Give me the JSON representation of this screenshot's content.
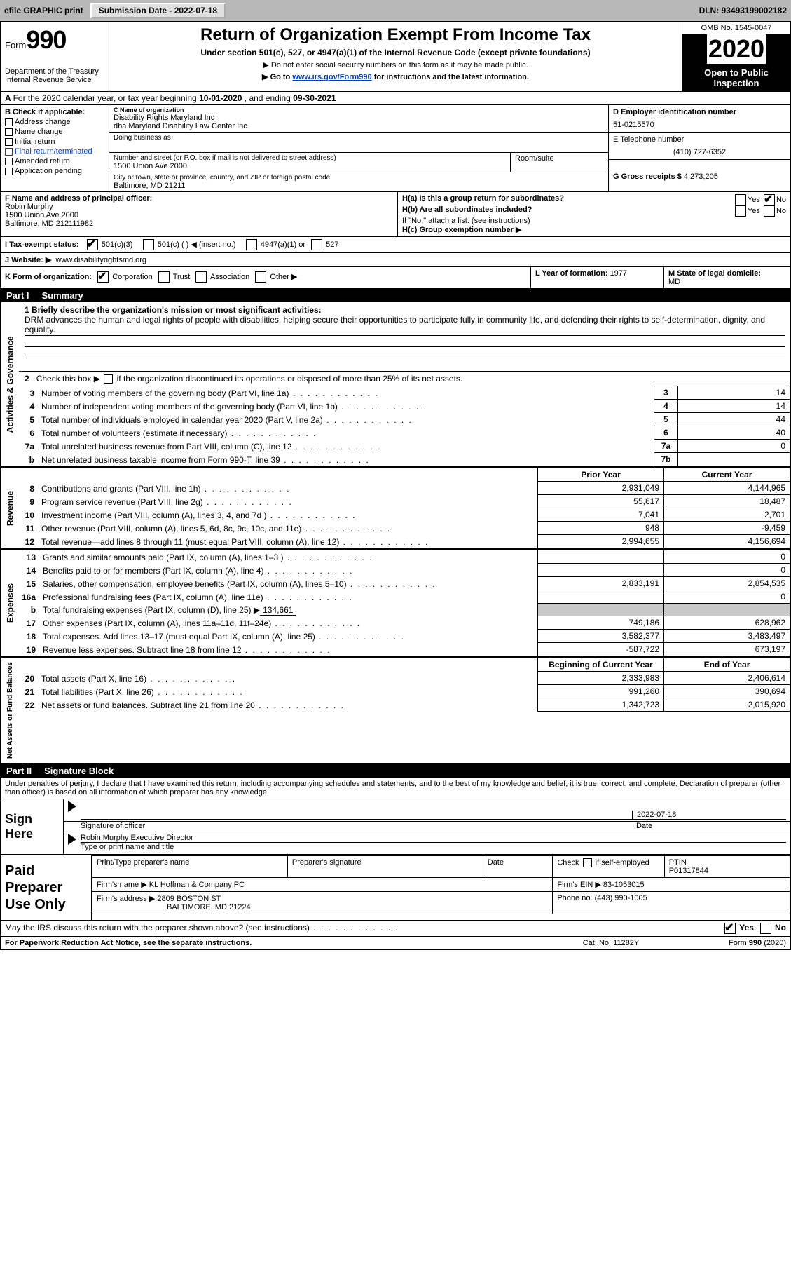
{
  "topbar": {
    "efile": "efile GRAPHIC print",
    "submission_label": "Submission Date - 2022-07-18",
    "dln_label": "DLN: 93493199002182"
  },
  "header": {
    "form_label": "Form",
    "form_num": "990",
    "dept": "Department of the Treasury",
    "irs": "Internal Revenue Service",
    "title": "Return of Organization Exempt From Income Tax",
    "sub": "Under section 501(c), 527, or 4947(a)(1) of the Internal Revenue Code (except private foundations)",
    "sub2a": "▶ Do not enter social security numbers on this form as it may be made public.",
    "sub2b_pre": "▶ Go to ",
    "sub2b_link": "www.irs.gov/Form990",
    "sub2b_post": " for instructions and the latest information.",
    "omb": "OMB No. 1545-0047",
    "year": "2020",
    "inspection": "Open to Public Inspection"
  },
  "rowA": {
    "text_pre": "For the 2020 calendar year, or tax year beginning ",
    "beg": "10-01-2020",
    "mid": "   , and ending ",
    "end": "09-30-2021"
  },
  "colB": {
    "hdr": "B Check if applicable:",
    "items": [
      "Address change",
      "Name change",
      "Initial return",
      "Final return/terminated",
      "Amended return",
      "Application pending"
    ]
  },
  "colC": {
    "name_lbl": "C Name of organization",
    "name1": "Disability Rights Maryland Inc",
    "name2": "dba Maryland Disability Law Center Inc",
    "dba_lbl": "Doing business as",
    "addr_lbl": "Number and street (or P.O. box if mail is not delivered to street address)",
    "room_lbl": "Room/suite",
    "addr": "1500 Union Ave 2000",
    "city_lbl": "City or town, state or province, country, and ZIP or foreign postal code",
    "city": "Baltimore, MD  21211"
  },
  "colD": {
    "d_lbl": "D Employer identification number",
    "ein": "51-0215570",
    "e_lbl": "E Telephone number",
    "phone": "(410) 727-6352",
    "g_lbl": "G Gross receipts $ ",
    "g_val": "4,273,205"
  },
  "fgh": {
    "f_lbl": "F Name and address of principal officer:",
    "f_name": "Robin Murphy",
    "f_addr1": "1500 Union Ave 2000",
    "f_addr2": "Baltimore, MD  212111982",
    "ha_lbl": "H(a)  Is this a group return for subordinates?",
    "hb_lbl": "H(b)  Are all subordinates included?",
    "h_note": "If \"No,\" attach a list. (see instructions)",
    "hc_lbl": "H(c)  Group exemption number ▶"
  },
  "rowI": {
    "lbl": "I    Tax-exempt status:",
    "o1": "501(c)(3)",
    "o2": "501(c) (   ) ◀ (insert no.)",
    "o3": "4947(a)(1) or",
    "o4": "527"
  },
  "rowJ": {
    "lbl": "J    Website: ▶",
    "val": "www.disabilityrightsmd.org"
  },
  "rowK": {
    "lbl": "K Form of organization:",
    "o1": "Corporation",
    "o2": "Trust",
    "o3": "Association",
    "o4": "Other ▶"
  },
  "rowL": {
    "lbl": "L Year of formation: ",
    "val": "1977"
  },
  "rowM": {
    "lbl": "M State of legal domicile: ",
    "val": "MD"
  },
  "part1": {
    "pn": "Part I",
    "title": "Summary"
  },
  "gov": {
    "q1_lbl": "1  Briefly describe the organization's mission or most significant activities:",
    "q1_text": "DRM advances the human and legal rights of people with disabilities, helping secure their opportunities to participate fully in community life, and defending their rights to self-determination, dignity, and equality.",
    "q2": "2   Check this box ▶        if the organization discontinued its operations or disposed of more than 25% of its net assets.",
    "rows": [
      {
        "n": "3",
        "label": "Number of voting members of the governing body (Part VI, line 1a)",
        "box": "3",
        "val": "14"
      },
      {
        "n": "4",
        "label": "Number of independent voting members of the governing body (Part VI, line 1b)",
        "box": "4",
        "val": "14"
      },
      {
        "n": "5",
        "label": "Total number of individuals employed in calendar year 2020 (Part V, line 2a)",
        "box": "5",
        "val": "44"
      },
      {
        "n": "6",
        "label": "Total number of volunteers (estimate if necessary)",
        "box": "6",
        "val": "40"
      },
      {
        "n": "7a",
        "label": "Total unrelated business revenue from Part VIII, column (C), line 12",
        "box": "7a",
        "val": "0"
      },
      {
        "n": "b",
        "label": "Net unrelated business taxable income from Form 990-T, line 39",
        "box": "7b",
        "val": ""
      }
    ]
  },
  "rev": {
    "hdr_prior": "Prior Year",
    "hdr_curr": "Current Year",
    "rows": [
      {
        "n": "8",
        "label": "Contributions and grants (Part VIII, line 1h)",
        "p": "2,931,049",
        "c": "4,144,965"
      },
      {
        "n": "9",
        "label": "Program service revenue (Part VIII, line 2g)",
        "p": "55,617",
        "c": "18,487"
      },
      {
        "n": "10",
        "label": "Investment income (Part VIII, column (A), lines 3, 4, and 7d )",
        "p": "7,041",
        "c": "2,701"
      },
      {
        "n": "11",
        "label": "Other revenue (Part VIII, column (A), lines 5, 6d, 8c, 9c, 10c, and 11e)",
        "p": "948",
        "c": "-9,459"
      },
      {
        "n": "12",
        "label": "Total revenue—add lines 8 through 11 (must equal Part VIII, column (A), line 12)",
        "p": "2,994,655",
        "c": "4,156,694"
      }
    ]
  },
  "exp": {
    "rows": [
      {
        "n": "13",
        "label": "Grants and similar amounts paid (Part IX, column (A), lines 1–3 )",
        "p": "",
        "c": "0"
      },
      {
        "n": "14",
        "label": "Benefits paid to or for members (Part IX, column (A), line 4)",
        "p": "",
        "c": "0"
      },
      {
        "n": "15",
        "label": "Salaries, other compensation, employee benefits (Part IX, column (A), lines 5–10)",
        "p": "2,833,191",
        "c": "2,854,535"
      },
      {
        "n": "16a",
        "label": "Professional fundraising fees (Part IX, column (A), line 11e)",
        "p": "",
        "c": "0"
      }
    ],
    "row_b": {
      "n": "b",
      "label": "Total fundraising expenses (Part IX, column (D), line 25) ▶",
      "val": "134,661"
    },
    "rows2": [
      {
        "n": "17",
        "label": "Other expenses (Part IX, column (A), lines 11a–11d, 11f–24e)",
        "p": "749,186",
        "c": "628,962"
      },
      {
        "n": "18",
        "label": "Total expenses. Add lines 13–17 (must equal Part IX, column (A), line 25)",
        "p": "3,582,377",
        "c": "3,483,497"
      },
      {
        "n": "19",
        "label": "Revenue less expenses. Subtract line 18 from line 12",
        "p": "-587,722",
        "c": "673,197"
      }
    ]
  },
  "net": {
    "hdr_beg": "Beginning of Current Year",
    "hdr_end": "End of Year",
    "rows": [
      {
        "n": "20",
        "label": "Total assets (Part X, line 16)",
        "p": "2,333,983",
        "c": "2,406,614"
      },
      {
        "n": "21",
        "label": "Total liabilities (Part X, line 26)",
        "p": "991,260",
        "c": "390,694"
      },
      {
        "n": "22",
        "label": "Net assets or fund balances. Subtract line 21 from line 20",
        "p": "1,342,723",
        "c": "2,015,920"
      }
    ]
  },
  "part2": {
    "pn": "Part II",
    "title": "Signature Block"
  },
  "sig": {
    "intro": "Under penalties of perjury, I declare that I have examined this return, including accompanying schedules and statements, and to the best of my knowledge and belief, it is true, correct, and complete. Declaration of preparer (other than officer) is based on all information of which preparer has any knowledge.",
    "sign_here": "Sign Here",
    "sig_officer": "Signature of officer",
    "date_lbl": "Date",
    "date_val": "2022-07-18",
    "typed": "Robin Murphy  Executive Director",
    "typed_lbl": "Type or print name and title"
  },
  "prep": {
    "left": "Paid Preparer Use Only",
    "h1": "Print/Type preparer's name",
    "h2": "Preparer's signature",
    "h3": "Date",
    "h4_a": "Check",
    "h4_b": "if self-employed",
    "h5_lbl": "PTIN",
    "h5_val": "P01317844",
    "firm_name_lbl": "Firm's name    ▶",
    "firm_name": "KL Hoffman & Company PC",
    "firm_ein_lbl": "Firm's EIN ▶",
    "firm_ein": "83-1053015",
    "firm_addr_lbl": "Firm's address ▶",
    "firm_addr1": "2809 BOSTON ST",
    "firm_addr2": "BALTIMORE, MD  21224",
    "phone_lbl": "Phone no. ",
    "phone": "(443) 990-1005"
  },
  "footer": {
    "q": "May the IRS discuss this return with the preparer shown above? (see instructions)",
    "yes": "Yes",
    "no": "No",
    "pra": "For Paperwork Reduction Act Notice, see the separate instructions.",
    "cat": "Cat. No. 11282Y",
    "form": "Form 990 (2020)"
  },
  "vtabs": {
    "gov": "Activities & Governance",
    "rev": "Revenue",
    "exp": "Expenses",
    "net": "Net Assets or Fund Balances"
  }
}
